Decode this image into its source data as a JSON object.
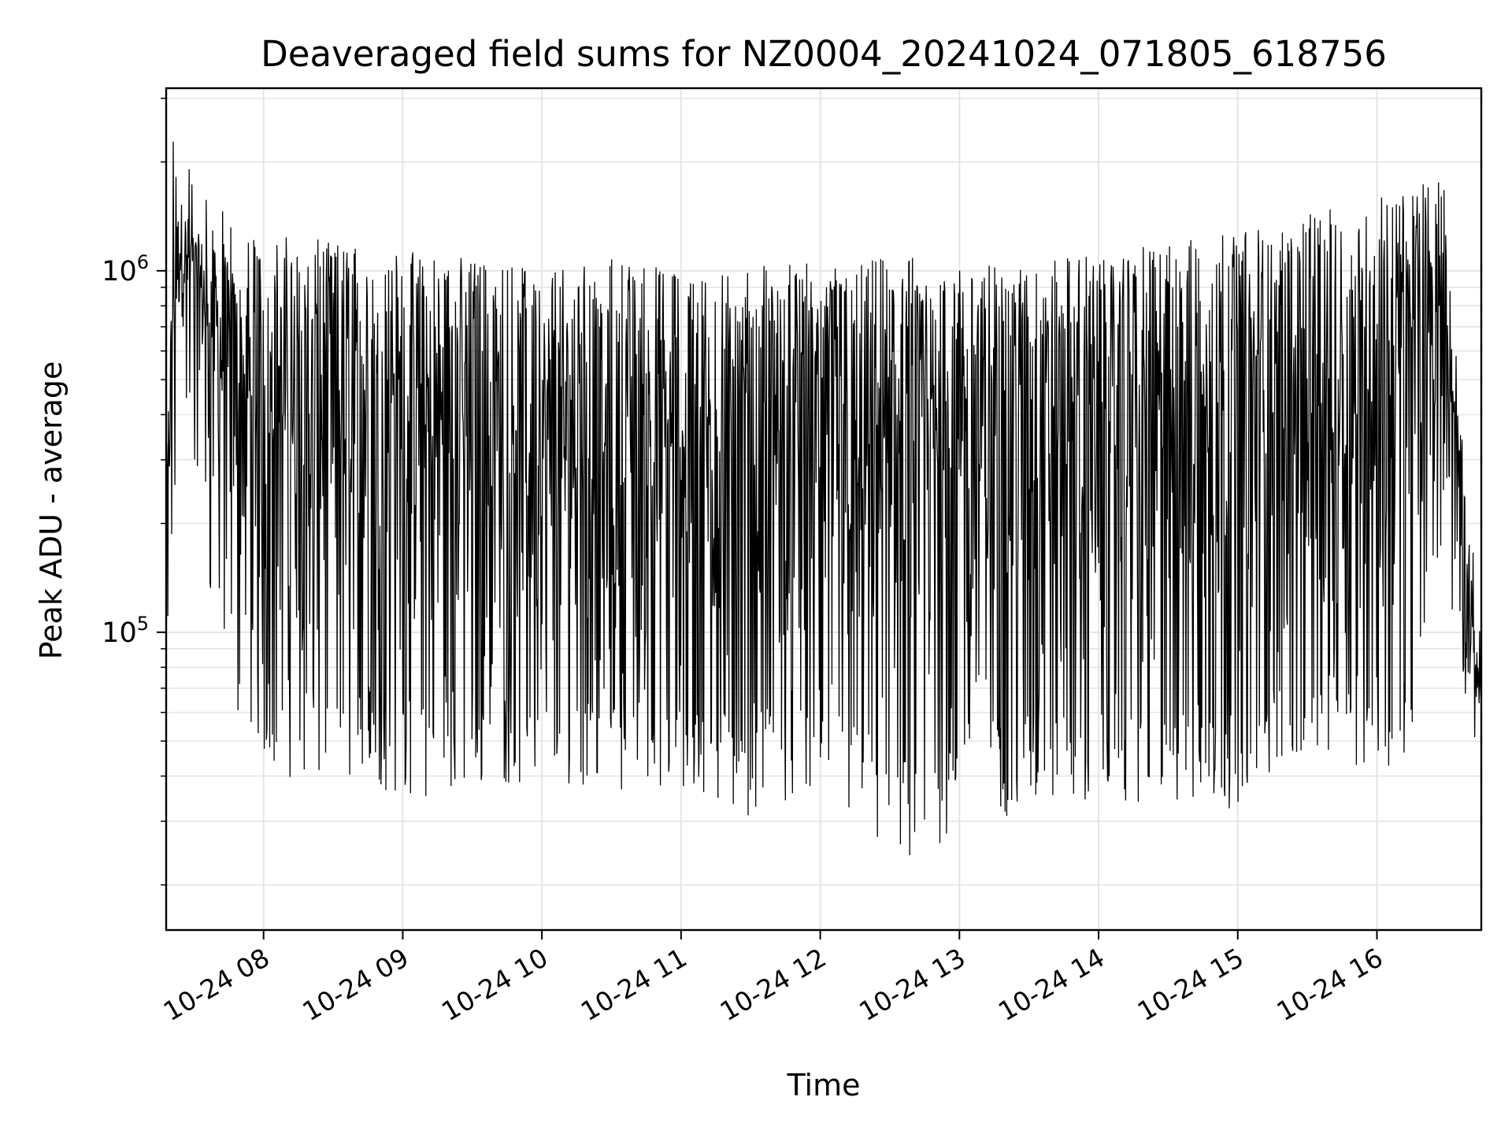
{
  "chart_data": {
    "type": "line",
    "title": "Deaveraged field sums for NZ0004_20241024_071805_618756",
    "xlabel": "Time",
    "ylabel": "Peak ADU - average",
    "yscale": "log",
    "ylim": [
      15000,
      3200000
    ],
    "xlim": [
      "2024-10-24 07:18",
      "2024-10-24 16:45"
    ],
    "grid": true,
    "line_color": "#000000",
    "grid_color": "#e5e5e5",
    "x_ticks": [
      {
        "value": "2024-10-24 08:00",
        "label": "10-24 08"
      },
      {
        "value": "2024-10-24 09:00",
        "label": "10-24 09"
      },
      {
        "value": "2024-10-24 10:00",
        "label": "10-24 10"
      },
      {
        "value": "2024-10-24 11:00",
        "label": "10-24 11"
      },
      {
        "value": "2024-10-24 12:00",
        "label": "10-24 12"
      },
      {
        "value": "2024-10-24 13:00",
        "label": "10-24 13"
      },
      {
        "value": "2024-10-24 14:00",
        "label": "10-24 14"
      },
      {
        "value": "2024-10-24 15:00",
        "label": "10-24 15"
      },
      {
        "value": "2024-10-24 16:00",
        "label": "10-24 16"
      }
    ],
    "y_ticks": [
      {
        "value": 100000,
        "base": "10",
        "exp": "5"
      },
      {
        "value": 1000000,
        "base": "10",
        "exp": "6"
      }
    ],
    "series": [
      {
        "type": "envelope",
        "x": [
          "2024-10-24 07:18",
          "2024-10-24 07:21",
          "2024-10-24 07:24",
          "2024-10-24 07:30",
          "2024-10-24 07:36",
          "2024-10-24 07:42",
          "2024-10-24 07:50",
          "2024-10-24 08:00",
          "2024-10-24 08:15",
          "2024-10-24 08:30",
          "2024-10-24 08:45",
          "2024-10-24 09:00",
          "2024-10-24 09:15",
          "2024-10-24 09:30",
          "2024-10-24 09:45",
          "2024-10-24 10:00",
          "2024-10-24 10:15",
          "2024-10-24 10:30",
          "2024-10-24 10:45",
          "2024-10-24 11:00",
          "2024-10-24 11:15",
          "2024-10-24 11:30",
          "2024-10-24 11:45",
          "2024-10-24 12:00",
          "2024-10-24 12:15",
          "2024-10-24 12:30",
          "2024-10-24 12:40",
          "2024-10-24 12:50",
          "2024-10-24 13:00",
          "2024-10-24 13:15",
          "2024-10-24 13:30",
          "2024-10-24 13:45",
          "2024-10-24 14:00",
          "2024-10-24 14:15",
          "2024-10-24 14:30",
          "2024-10-24 14:45",
          "2024-10-24 15:00",
          "2024-10-24 15:15",
          "2024-10-24 15:30",
          "2024-10-24 15:45",
          "2024-10-24 16:00",
          "2024-10-24 16:10",
          "2024-10-24 16:20",
          "2024-10-24 16:25",
          "2024-10-24 16:30",
          "2024-10-24 16:33",
          "2024-10-24 16:38",
          "2024-10-24 16:42",
          "2024-10-24 16:45"
        ],
        "low": [
          35000,
          150000,
          300000,
          250000,
          130000,
          70000,
          55000,
          45000,
          38000,
          36000,
          37000,
          35000,
          34000,
          37000,
          38000,
          37000,
          38000,
          37000,
          36000,
          35000,
          32000,
          31000,
          34000,
          35000,
          30000,
          22000,
          19000,
          23000,
          32000,
          30000,
          32000,
          33000,
          34000,
          33000,
          33000,
          31000,
          33000,
          40000,
          45000,
          45000,
          40000,
          40000,
          70000,
          150000,
          200000,
          90000,
          60000,
          45000,
          50000
        ],
        "typ_low": [
          80000,
          500000,
          700000,
          600000,
          400000,
          200000,
          120000,
          90000,
          80000,
          80000,
          75000,
          70000,
          70000,
          75000,
          75000,
          75000,
          70000,
          70000,
          70000,
          65000,
          65000,
          65000,
          70000,
          70000,
          60000,
          50000,
          45000,
          50000,
          60000,
          60000,
          60000,
          60000,
          60000,
          60000,
          60000,
          60000,
          65000,
          70000,
          80000,
          80000,
          80000,
          85000,
          150000,
          300000,
          400000,
          200000,
          100000,
          70000,
          60000
        ],
        "typ_high": [
          300000,
          1200000,
          1600000,
          1300000,
          1200000,
          1100000,
          1000000,
          950000,
          950000,
          930000,
          920000,
          900000,
          880000,
          860000,
          850000,
          850000,
          830000,
          820000,
          810000,
          800000,
          800000,
          800000,
          810000,
          830000,
          850000,
          870000,
          880000,
          880000,
          880000,
          880000,
          890000,
          900000,
          920000,
          950000,
          980000,
          1000000,
          1050000,
          1100000,
          1150000,
          1200000,
          1250000,
          1300000,
          1500000,
          1500000,
          1300000,
          500000,
          300000,
          100000,
          80000
        ],
        "high": [
          700000,
          2500000,
          2600000,
          2200000,
          1700000,
          1500000,
          1350000,
          1250000,
          1250000,
          1200000,
          1200000,
          1150000,
          1100000,
          1100000,
          1050000,
          1050000,
          1050000,
          1100000,
          1050000,
          1000000,
          1000000,
          1050000,
          1050000,
          1050000,
          1050000,
          1100000,
          1100000,
          1100000,
          1050000,
          1050000,
          1050000,
          1100000,
          1100000,
          1150000,
          1200000,
          1250000,
          1300000,
          1400000,
          1450000,
          1500000,
          1600000,
          1700000,
          2000000,
          2200000,
          1600000,
          700000,
          450000,
          150000,
          90000
        ]
      }
    ]
  }
}
